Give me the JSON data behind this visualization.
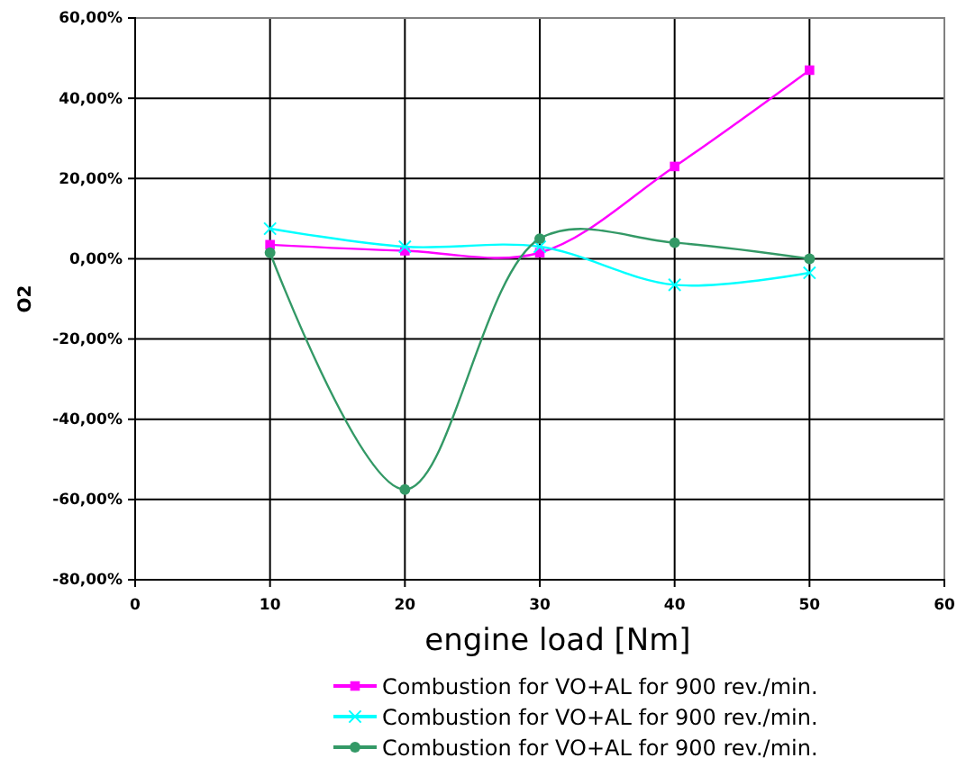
{
  "chart_data": {
    "type": "line",
    "xlabel": "engine load [Nm]",
    "ylabel": "O2",
    "x": [
      10,
      20,
      30,
      40,
      50
    ],
    "series": [
      {
        "name": "Combustion for VO+AL for 900 rev./min.",
        "color": "#ff00ff",
        "marker": "square",
        "values": [
          3.5,
          2,
          1.5,
          23,
          47
        ]
      },
      {
        "name": "Combustion for VO+AL for 900 rev./min.",
        "color": "#00ffff",
        "marker": "cross",
        "values": [
          7.5,
          3,
          3,
          -6.5,
          -3.5
        ]
      },
      {
        "name": "Combustion for VO+AL for 900 rev./min.",
        "color": "#339966",
        "marker": "circle",
        "values": [
          1.5,
          -57.5,
          5,
          4,
          0
        ]
      }
    ],
    "xlim": [
      0,
      60
    ],
    "xticks": [
      0,
      10,
      20,
      30,
      40,
      50,
      60
    ],
    "ylim": [
      -80,
      60
    ],
    "yticks": [
      {
        "value": -80,
        "label": "-80,00%"
      },
      {
        "value": -60,
        "label": "-60,00%"
      },
      {
        "value": -40,
        "label": "-40,00%"
      },
      {
        "value": -20,
        "label": "-20,00%"
      },
      {
        "value": 0,
        "label": "0,00%"
      },
      {
        "value": 20,
        "label": "20,00%"
      },
      {
        "value": 40,
        "label": "40,00%"
      },
      {
        "value": 60,
        "label": "60,00%"
      }
    ],
    "grid": true,
    "legend": "bottom"
  }
}
